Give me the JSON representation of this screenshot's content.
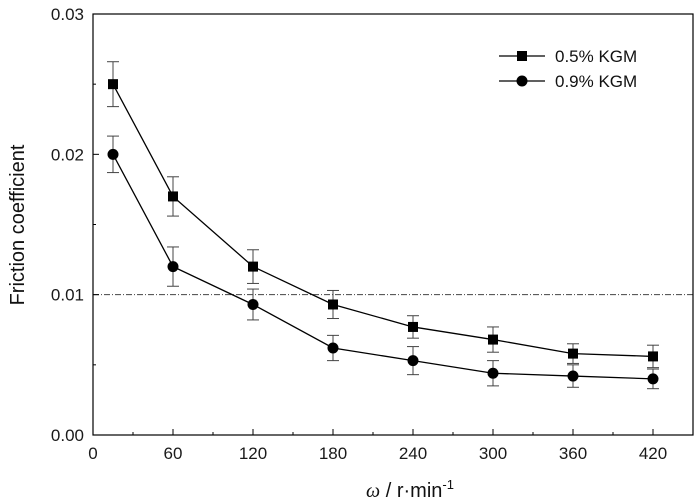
{
  "chart_data": {
    "type": "line",
    "title": "",
    "xlabel_symbol": "ω",
    "xlabel_unit": " / r·min",
    "xlabel_exp": "-1",
    "ylabel": "Friction coefficient",
    "xlim": [
      0,
      450
    ],
    "ylim": [
      0,
      0.03
    ],
    "xticks": [
      0,
      60,
      120,
      180,
      240,
      300,
      360,
      420
    ],
    "xtick_labels": [
      "0",
      "60",
      "120",
      "180",
      "240",
      "300",
      "360",
      "420"
    ],
    "yticks": [
      0,
      0.01,
      0.02,
      0.03
    ],
    "ytick_labels": [
      "0.00",
      "0.01",
      "0.02",
      "0.03"
    ],
    "grid": false,
    "reference_line_y": 0.01,
    "legend_position": "top-right",
    "x": [
      15,
      60,
      120,
      180,
      240,
      300,
      360,
      420
    ],
    "series": [
      {
        "name": "0.5% KGM",
        "marker": "square",
        "values": [
          0.025,
          0.017,
          0.012,
          0.0093,
          0.0077,
          0.0068,
          0.0058,
          0.0056
        ],
        "errors": [
          0.0016,
          0.0014,
          0.0012,
          0.001,
          0.0008,
          0.0009,
          0.0007,
          0.0008
        ]
      },
      {
        "name": "0.9% KGM",
        "marker": "circle",
        "values": [
          0.02,
          0.012,
          0.0093,
          0.0062,
          0.0053,
          0.0044,
          0.0042,
          0.004
        ],
        "errors": [
          0.0013,
          0.0014,
          0.0011,
          0.0009,
          0.001,
          0.0009,
          0.0008,
          0.0007
        ]
      }
    ]
  }
}
